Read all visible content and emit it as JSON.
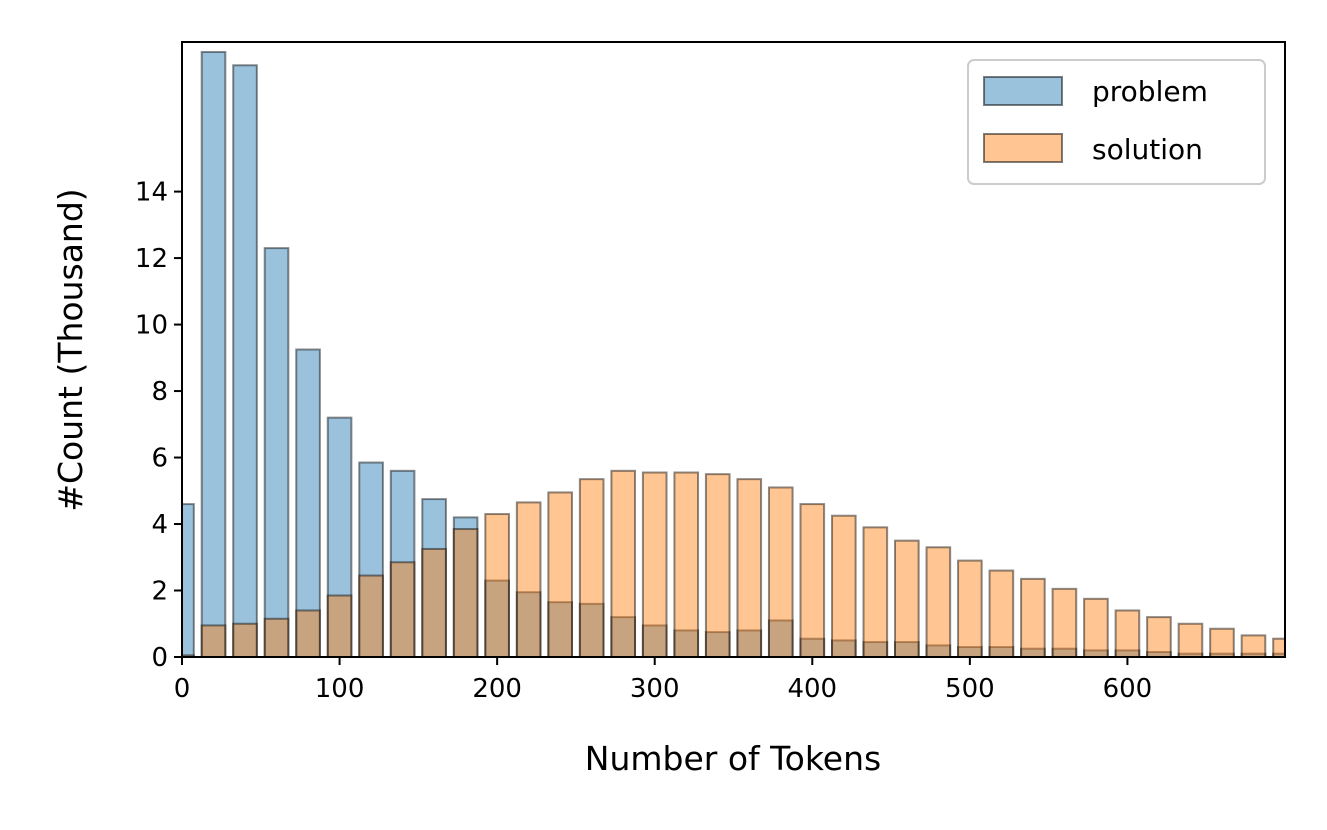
{
  "chart_data": {
    "type": "bar",
    "xlabel": "Number of Tokens",
    "ylabel": "#Count (Thousand)",
    "xlim": [
      0,
      700
    ],
    "ylim": [
      0,
      18.5
    ],
    "bin_width": 20,
    "bar_width": 15,
    "xticks": [
      0,
      100,
      200,
      300,
      400,
      500,
      600
    ],
    "yticks": [
      0,
      2,
      4,
      6,
      8,
      10,
      12,
      14
    ],
    "grid": false,
    "legend_position": "top-right",
    "x": [
      0,
      20,
      40,
      60,
      80,
      100,
      120,
      140,
      160,
      180,
      200,
      220,
      240,
      260,
      280,
      300,
      320,
      340,
      360,
      380,
      400,
      420,
      440,
      460,
      480,
      500,
      520,
      540,
      560,
      580,
      600,
      620,
      640,
      660,
      680,
      700
    ],
    "series": [
      {
        "name": "problem",
        "color": "#1f77b4",
        "values": [
          4.6,
          18.2,
          17.8,
          12.3,
          9.25,
          7.2,
          5.85,
          5.6,
          4.75,
          4.2,
          2.3,
          1.95,
          1.65,
          1.6,
          1.2,
          0.95,
          0.8,
          0.75,
          0.8,
          1.1,
          0.55,
          0.5,
          0.45,
          0.45,
          0.35,
          0.3,
          0.3,
          0.25,
          0.25,
          0.2,
          0.2,
          0.15,
          0.1,
          0.1,
          0.1,
          0.1
        ]
      },
      {
        "name": "solution",
        "color": "#ff7f0e",
        "values": [
          0.05,
          0.95,
          1.0,
          1.15,
          1.4,
          1.85,
          2.45,
          2.85,
          3.25,
          3.85,
          4.3,
          4.65,
          4.95,
          5.35,
          5.6,
          5.55,
          5.55,
          5.5,
          5.35,
          5.1,
          4.6,
          4.25,
          3.9,
          3.5,
          3.3,
          2.9,
          2.6,
          2.35,
          2.05,
          1.75,
          1.4,
          1.2,
          1.0,
          0.85,
          0.65,
          0.55
        ]
      }
    ]
  }
}
